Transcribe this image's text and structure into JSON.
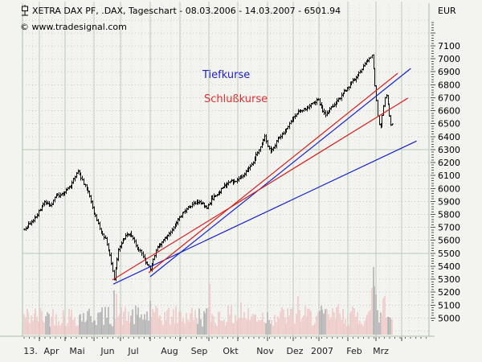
{
  "header": {
    "title": "XETRA DAX PF, .DAX, Tageschart - 08.03.2006 - 14.03.2007 - 6501.94",
    "copyright": "© www.tradesignal.com",
    "currency_label": "EUR"
  },
  "chart_data": {
    "type": "ohlc-bar",
    "title": "XETRA DAX PF, .DAX, Tageschart - 08.03.2006 - 14.03.2007 - 6501.94",
    "instrument": "XETRA DAX PF",
    "symbol": ".DAX",
    "timeframe": "Tageschart",
    "range_start": "08.03.2006",
    "range_end": "14.03.2007",
    "last_close": 6501.94,
    "currency": "EUR",
    "colors": {
      "bar": "#111111",
      "trend_low": "#1622cc",
      "trend_close": "#d42020",
      "grid_green": "#b7cdb7",
      "border_green": "#a4c0a4",
      "volume_up": "#eec9c9",
      "volume_down": "#b2b2b2",
      "annot_blue": "#2020cc",
      "annot_red": "#e03030"
    },
    "y_axis": {
      "unit": "EUR",
      "tick_step": 100,
      "minor_tick": 20,
      "labels": [
        7100,
        7000,
        6900,
        6800,
        6700,
        6600,
        6500,
        6400,
        6300,
        6200,
        6100,
        6000,
        5900,
        5800,
        5700,
        5600,
        5500,
        5400,
        5300,
        5200,
        5100,
        5000
      ],
      "solid_lines_at": [
        6300,
        5500
      ]
    },
    "x_axis": {
      "labels": [
        "13.",
        "Apr",
        "Mai",
        "Jun",
        "Jul",
        "Aug",
        "Sep",
        "Okt",
        "Nov",
        "Dez",
        "2007",
        "Feb",
        "Mrz"
      ]
    },
    "annotations": [
      {
        "text": "Tiefkurse",
        "color": "#2020cc"
      },
      {
        "text": "Schlußkurse",
        "color": "#e03030"
      }
    ],
    "series": {
      "days_total": 255,
      "price_anchors_day_close": [
        [
          0,
          5690
        ],
        [
          4,
          5730
        ],
        [
          9,
          5800
        ],
        [
          14,
          5890
        ],
        [
          18,
          5860
        ],
        [
          22,
          5940
        ],
        [
          28,
          5970
        ],
        [
          32,
          6020
        ],
        [
          37,
          6140
        ],
        [
          40,
          6060
        ],
        [
          44,
          5980
        ],
        [
          48,
          5810
        ],
        [
          52,
          5690
        ],
        [
          56,
          5610
        ],
        [
          59,
          5480
        ],
        [
          62,
          5300
        ],
        [
          65,
          5520
        ],
        [
          69,
          5620
        ],
        [
          73,
          5660
        ],
        [
          77,
          5560
        ],
        [
          81,
          5500
        ],
        [
          85,
          5420
        ],
        [
          87,
          5370
        ],
        [
          91,
          5520
        ],
        [
          95,
          5590
        ],
        [
          99,
          5640
        ],
        [
          103,
          5690
        ],
        [
          106,
          5770
        ],
        [
          111,
          5830
        ],
        [
          115,
          5870
        ],
        [
          119,
          5900
        ],
        [
          123,
          5880
        ],
        [
          126,
          5840
        ],
        [
          129,
          5920
        ],
        [
          134,
          5960
        ],
        [
          138,
          6020
        ],
        [
          142,
          6050
        ],
        [
          146,
          6060
        ],
        [
          150,
          6090
        ],
        [
          154,
          6140
        ],
        [
          158,
          6200
        ],
        [
          161,
          6280
        ],
        [
          164,
          6350
        ],
        [
          166,
          6400
        ],
        [
          168,
          6330
        ],
        [
          170,
          6280
        ],
        [
          172,
          6310
        ],
        [
          174,
          6370
        ],
        [
          177,
          6410
        ],
        [
          181,
          6450
        ],
        [
          185,
          6540
        ],
        [
          189,
          6590
        ],
        [
          192,
          6600
        ],
        [
          196,
          6630
        ],
        [
          200,
          6660
        ],
        [
          203,
          6680
        ],
        [
          206,
          6600
        ],
        [
          208,
          6560
        ],
        [
          211,
          6610
        ],
        [
          214,
          6650
        ],
        [
          218,
          6700
        ],
        [
          222,
          6760
        ],
        [
          226,
          6820
        ],
        [
          230,
          6880
        ],
        [
          234,
          6940
        ],
        [
          237,
          6990
        ],
        [
          240,
          7030
        ],
        [
          241,
          6930
        ],
        [
          242,
          6790
        ],
        [
          243,
          6680
        ],
        [
          244,
          6560
        ],
        [
          245,
          6490
        ],
        [
          246,
          6470
        ],
        [
          247,
          6560
        ],
        [
          248,
          6640
        ],
        [
          249,
          6700
        ],
        [
          250,
          6720
        ],
        [
          251,
          6650
        ],
        [
          252,
          6560
        ],
        [
          253,
          6490
        ],
        [
          254,
          6502
        ]
      ]
    },
    "trendlines": [
      {
        "name": "tiefkurse-lower",
        "color": "#1622cc",
        "from_day": 61.6,
        "from_price": 5262,
        "to_day": 271,
        "to_price": 6366
      },
      {
        "name": "tiefkurse-upper",
        "color": "#1622cc",
        "from_day": 87,
        "from_price": 5319,
        "to_day": 267,
        "to_price": 6926
      },
      {
        "name": "schlusskurse-lower",
        "color": "#d42020",
        "from_day": 61,
        "from_price": 5294,
        "to_day": 265,
        "to_price": 6697
      },
      {
        "name": "schlusskurse-upper",
        "color": "#d42020",
        "from_day": 86,
        "from_price": 5350,
        "to_day": 258,
        "to_price": 6889
      }
    ],
    "volume_spikes_day_height": [
      [
        62,
        55
      ],
      [
        64,
        51
      ],
      [
        87,
        42
      ],
      [
        128,
        63
      ],
      [
        150,
        40
      ],
      [
        189,
        48
      ],
      [
        217,
        38
      ],
      [
        240,
        58
      ],
      [
        241,
        84
      ],
      [
        242,
        60
      ],
      [
        243,
        50
      ],
      [
        248,
        45
      ],
      [
        249,
        48
      ]
    ]
  }
}
